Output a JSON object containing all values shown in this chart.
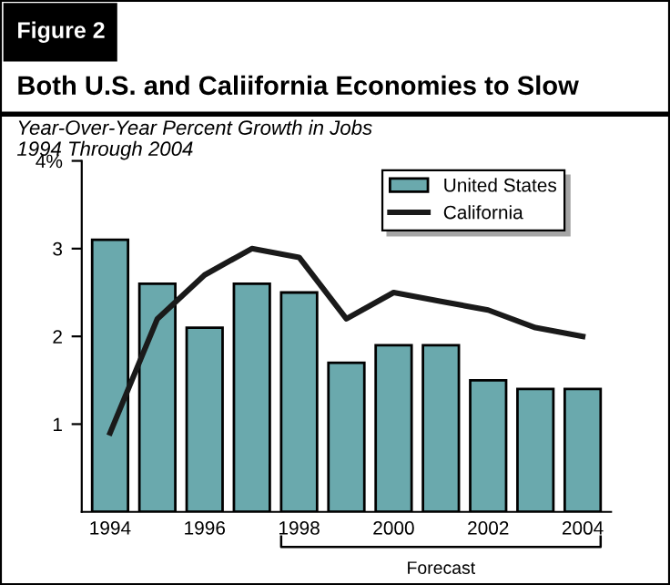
{
  "chart_data": {
    "type": "bar",
    "title": "Both U.S. and Caliifornia Economies to Slow",
    "subtitle": "Year-Over-Year Percent Growth in Jobs\n1994 Through 2004",
    "annotations": [
      "Figure 2",
      "Forecast"
    ],
    "categories": [
      "1994",
      null,
      "1996",
      null,
      "1998",
      null,
      "2000",
      null,
      "2002",
      null,
      "2004"
    ],
    "series": [
      {
        "name": "United States",
        "color": "#6aa9ad",
        "values": [
          3.1,
          2.6,
          2.1,
          2.6,
          2.5,
          1.7,
          1.9,
          1.9,
          1.5,
          1.4,
          1.4
        ]
      },
      {
        "name": "California",
        "type": "line",
        "color": "#1a1a1a",
        "values": [
          0.9,
          2.2,
          2.7,
          3.0,
          2.9,
          2.2,
          2.5,
          2.4,
          2.3,
          2.1,
          2.0
        ]
      }
    ],
    "ylim": [
      0,
      4
    ],
    "yticks": [
      1,
      2,
      3,
      {
        "value": 4,
        "label": "4%"
      }
    ],
    "grid": false,
    "legend": "top right",
    "marker": "none",
    "line_style": "solid"
  }
}
